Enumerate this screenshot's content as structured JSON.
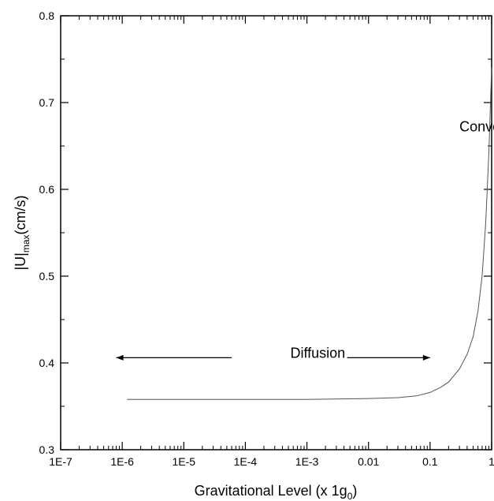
{
  "chart_data": {
    "type": "line",
    "xscale": "log",
    "xlim": [
      1e-07,
      1
    ],
    "ylim": [
      0.3,
      0.8
    ],
    "x_ticks": [
      1e-07,
      1e-06,
      1e-05,
      0.0001,
      0.001,
      0.01,
      0.1,
      1
    ],
    "x_tick_labels": [
      "1E-7",
      "1E-6",
      "1E-5",
      "1E-4",
      "1E-3",
      "0.01",
      "0.1",
      "1"
    ],
    "y_ticks": [
      0.3,
      0.4,
      0.5,
      0.6,
      0.7,
      0.8
    ],
    "y_tick_labels": [
      "0.3",
      "0.4",
      "0.5",
      "0.6",
      "0.7",
      "0.8"
    ],
    "xlabel_main": "Gravitational Level (x 1g",
    "xlabel_sub": "0",
    "xlabel_end": ")",
    "ylabel_main": "|U|",
    "ylabel_sub": "max",
    "ylabel_end": "(cm/s)",
    "series": [
      {
        "x": [
          1.2e-06,
          1e-05,
          0.0001,
          0.001,
          0.01,
          0.03,
          0.06,
          0.1,
          0.15,
          0.2,
          0.3,
          0.4,
          0.5,
          0.6,
          0.7,
          0.8,
          0.9,
          1.0
        ],
        "y": [
          0.358,
          0.358,
          0.358,
          0.358,
          0.359,
          0.36,
          0.362,
          0.366,
          0.372,
          0.378,
          0.393,
          0.41,
          0.43,
          0.46,
          0.5,
          0.56,
          0.64,
          0.74
        ]
      }
    ],
    "annotations": [
      {
        "text": "Convection",
        "x": 0.3,
        "y": 0.667
      },
      {
        "text": "Diffusion",
        "x": 0.0015,
        "y": 0.406
      }
    ],
    "arrows": [
      {
        "x_from": 6e-05,
        "x_to": 8e-07,
        "y": 0.406
      },
      {
        "x_from": 0.0045,
        "x_to": 0.1,
        "y": 0.406
      }
    ]
  }
}
